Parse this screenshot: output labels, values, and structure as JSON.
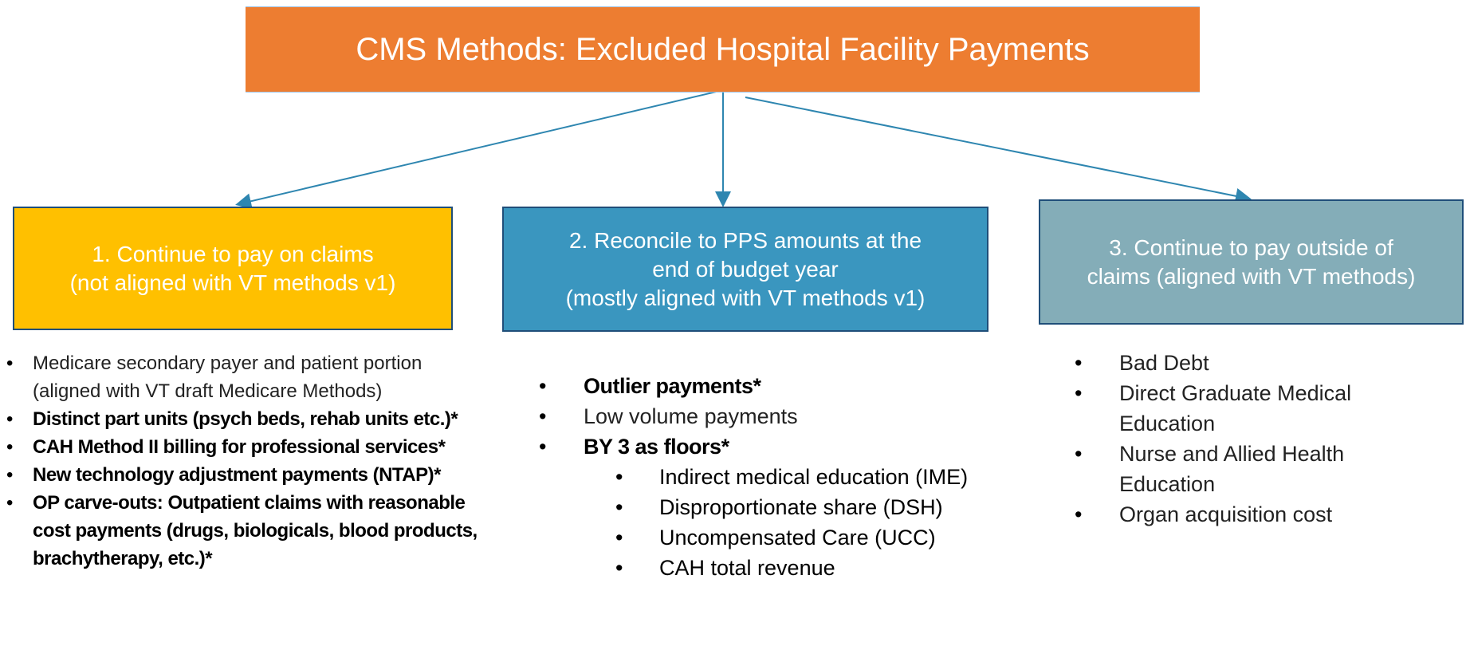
{
  "title": "CMS Methods: Excluded Hospital Facility Payments",
  "columns": [
    {
      "heading": [
        "1. Continue to pay on claims",
        "(not aligned with VT methods v1)"
      ],
      "color": "#FFC000",
      "items": [
        {
          "text": "Medicare secondary payer and patient portion (aligned with VT draft Medicare Methods)"
        },
        {
          "text": "Distinct part units (psych beds, rehab units etc.)*",
          "bold": true
        },
        {
          "text": "CAH Method II billing for professional services*",
          "bold": true
        },
        {
          "text": "New technology adjustment payments (NTAP)*",
          "bold": true
        },
        {
          "text": "OP carve-outs: Outpatient claims with reasonable cost payments (drugs, biologicals, blood products, brachytherapy, etc.)*",
          "bold": true
        }
      ]
    },
    {
      "heading": [
        "2. Reconcile to PPS amounts at the",
        "end of budget year",
        "(mostly aligned with VT methods v1)"
      ],
      "color": "#3A96BF",
      "items": [
        {
          "text": "Outlier payments*",
          "bold": true
        },
        {
          "text": "Low volume payments"
        },
        {
          "text": "BY 3 as floors*",
          "bold": true,
          "subitems": [
            "Indirect medical education (IME)",
            "Disproportionate share (DSH)",
            "Uncompensated Care (UCC)",
            "CAH total revenue"
          ]
        }
      ]
    },
    {
      "heading": [
        "3. Continue to pay outside of",
        "claims (aligned with VT methods)"
      ],
      "color": "#84ADB8",
      "items": [
        {
          "text": "Bad Debt"
        },
        {
          "text": "Direct Graduate Medical Education"
        },
        {
          "text": "Nurse and Allied Health Education"
        },
        {
          "text": "Organ acquisition cost"
        }
      ]
    }
  ]
}
